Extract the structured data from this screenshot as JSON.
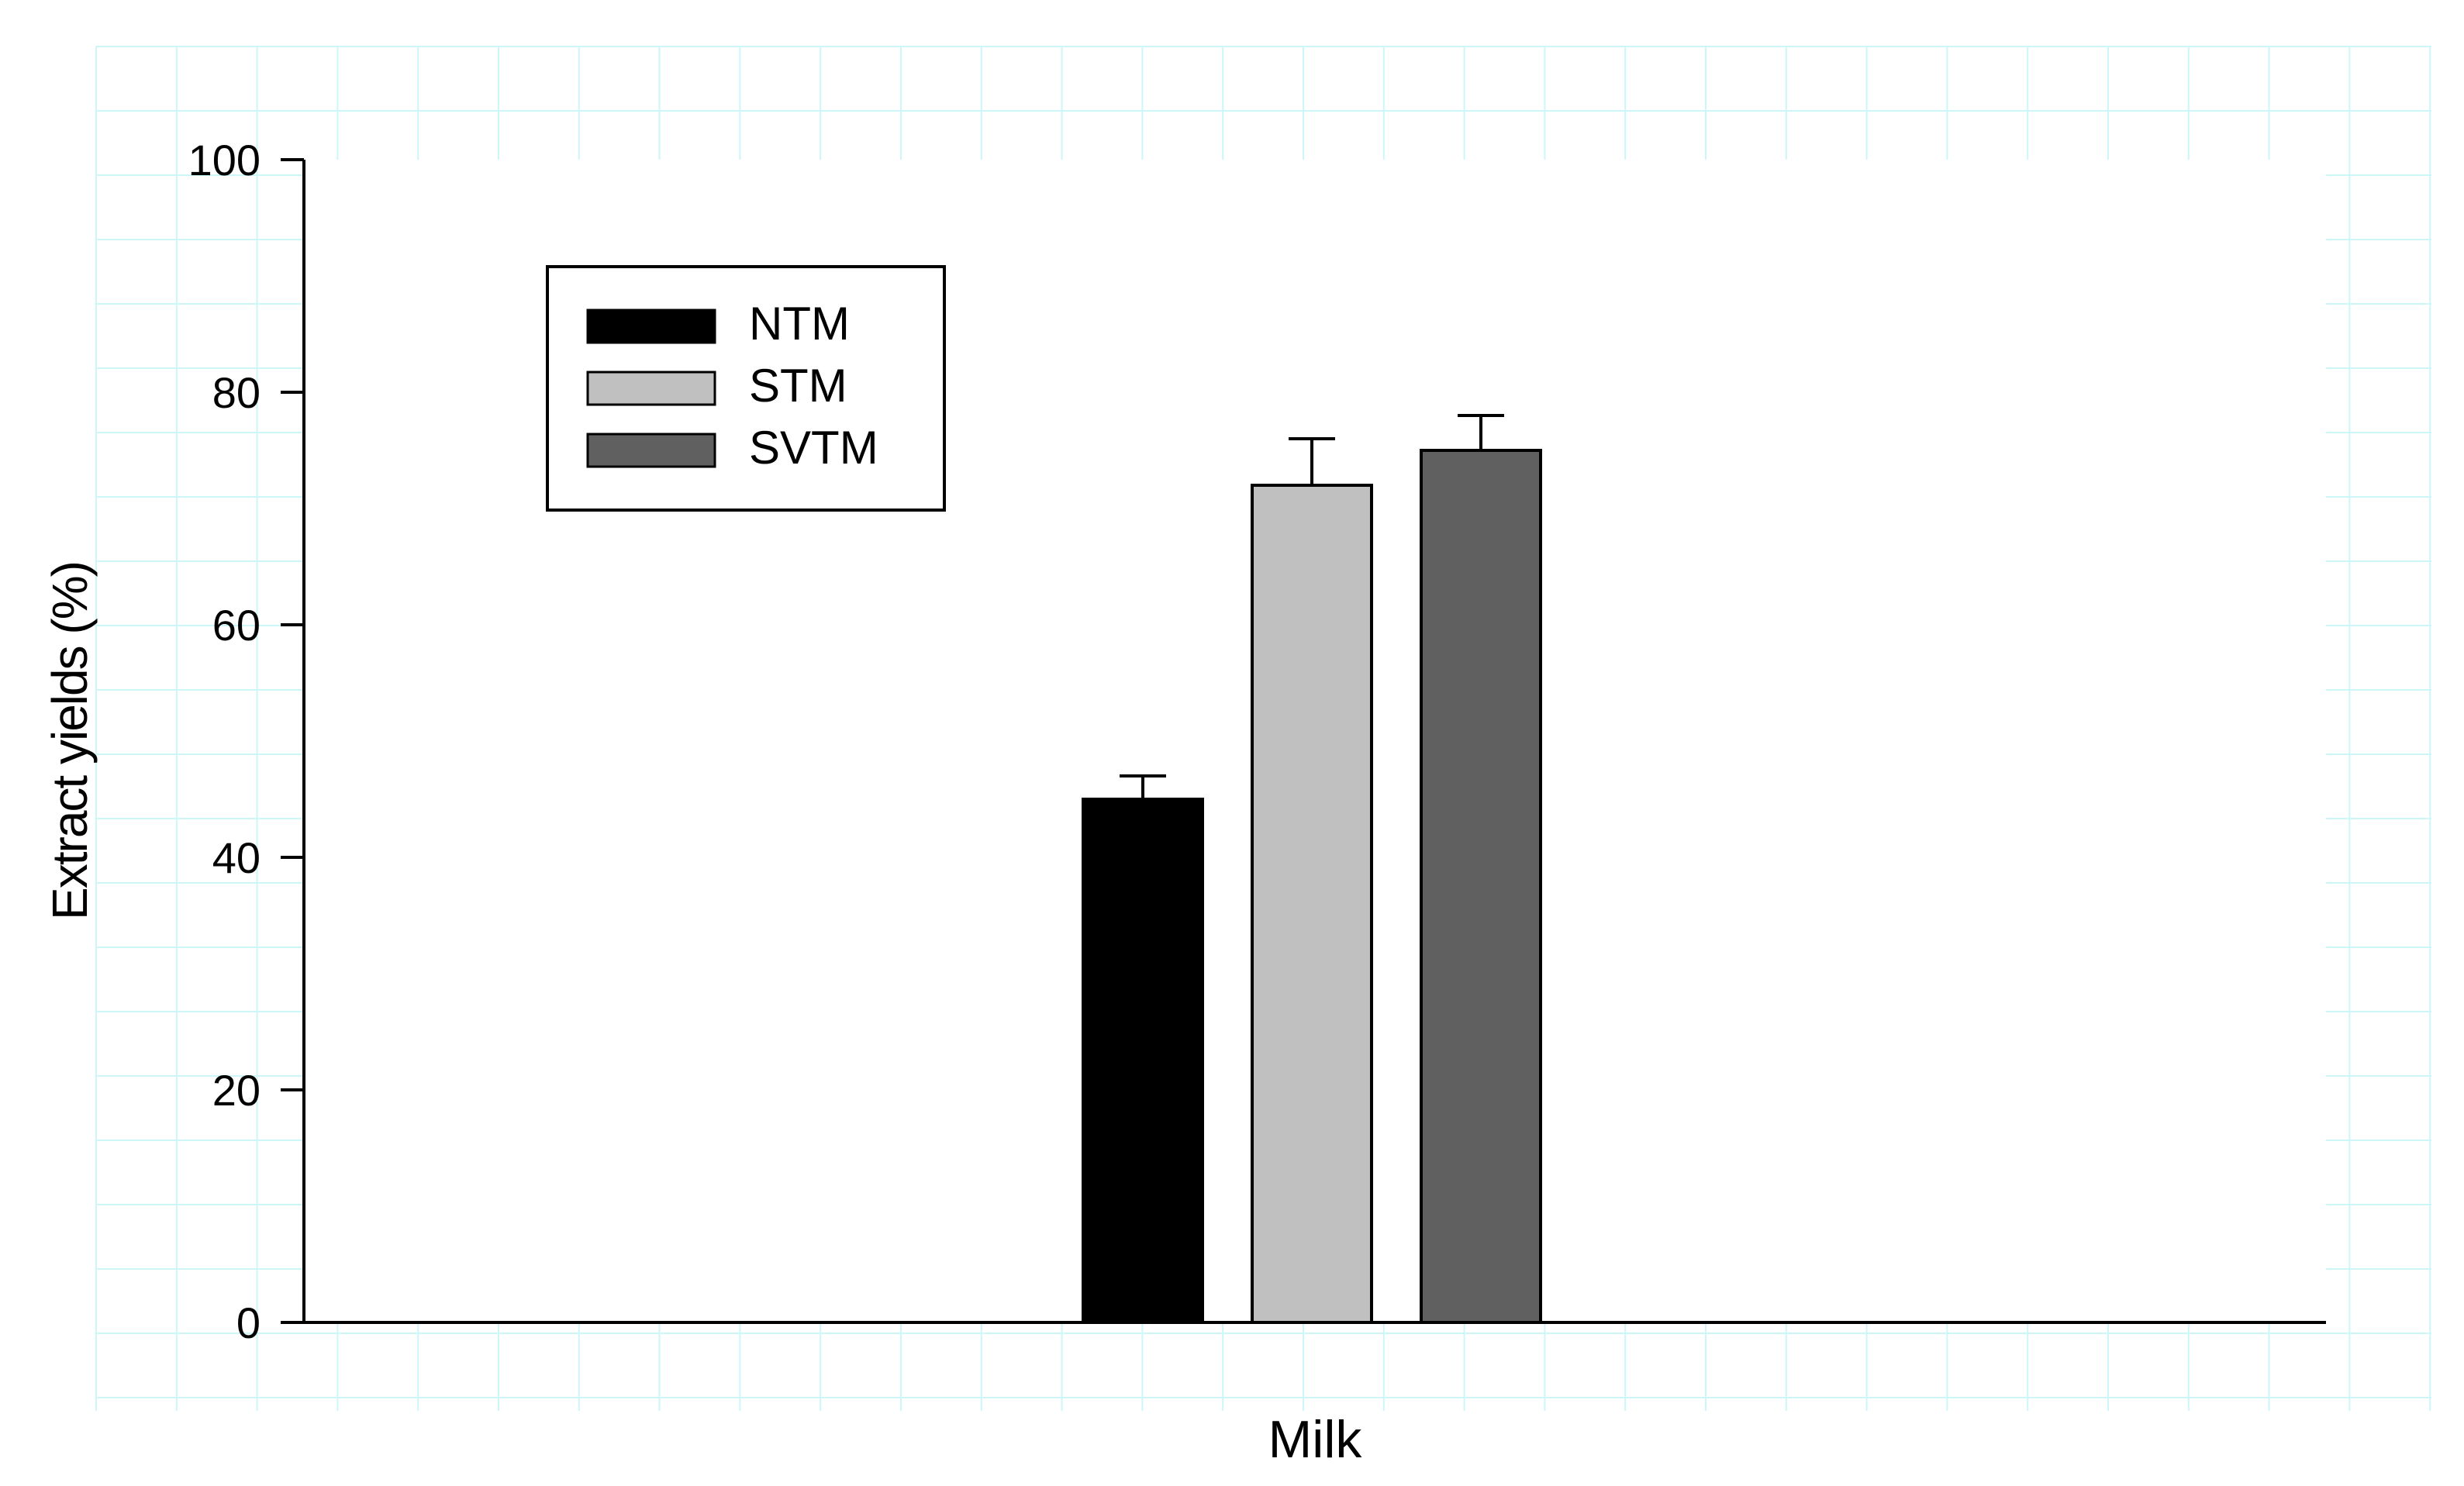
{
  "chart_data": {
    "type": "bar",
    "title": "",
    "xlabel": "Milk",
    "ylabel": "Extract yields (%)",
    "ylim": [
      0,
      100
    ],
    "yticks": [
      0,
      20,
      40,
      60,
      80,
      100
    ],
    "grid": "faint cyan background grid",
    "legend_position": "top-left",
    "categories": [
      "Milk"
    ],
    "series": [
      {
        "name": "NTM",
        "values": [
          45
        ],
        "error": [
          2
        ],
        "color": "#000000"
      },
      {
        "name": "STM",
        "values": [
          72
        ],
        "error": [
          4
        ],
        "color": "#c0c0c0"
      },
      {
        "name": "SVTM",
        "values": [
          75
        ],
        "error": [
          3
        ],
        "color": "#606060"
      }
    ]
  }
}
